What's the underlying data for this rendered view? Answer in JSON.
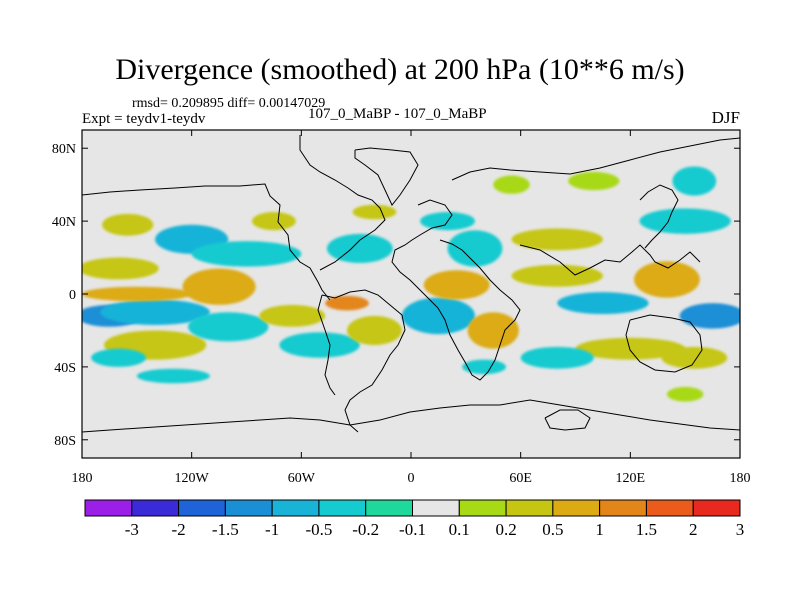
{
  "chart_data": {
    "type": "heatmap",
    "title": "Divergence (smoothed) at 200 hPa (10**6 m/s)",
    "stats_line": "rmsd= 0.209895 diff= 0.00147029",
    "experiment_label": "Expt = teydv1-teydv",
    "comparison_label": "107_0_MaBP - 107_0_MaBP",
    "season": "DJF",
    "x_axis": {
      "ticks": [
        -180,
        -120,
        -60,
        0,
        60,
        120,
        180
      ],
      "tick_labels": [
        "180",
        "120W",
        "60W",
        "0",
        "60E",
        "120E",
        "180"
      ],
      "xlim": [
        -180,
        180
      ]
    },
    "y_axis": {
      "ticks": [
        80,
        40,
        0,
        -40,
        -80
      ],
      "tick_labels": [
        "80N",
        "40N",
        "0",
        "40S",
        "80S"
      ],
      "ylim": [
        -90,
        90
      ]
    },
    "colorbar": {
      "boundaries": [
        "-3",
        "-2",
        "-1.5",
        "-1",
        "-0.5",
        "-0.2",
        "-0.1",
        "0.1",
        "0.2",
        "0.5",
        "1",
        "1.5",
        "2",
        "3"
      ],
      "colors": [
        "#9b1fe6",
        "#3a2ad8",
        "#1f63d9",
        "#1b8fd6",
        "#19b3d8",
        "#16cbd0",
        "#1ed89c",
        "#e6e6e6",
        "#a8d915",
        "#c6c612",
        "#dcab14",
        "#e3861a",
        "#ea5b1c",
        "#e8291f"
      ]
    },
    "anomaly_regions": [
      {
        "lon": -165,
        "lat": -12,
        "dlon": 18,
        "dlat": 6,
        "value": -1.0
      },
      {
        "lon": -140,
        "lat": -10,
        "dlon": 30,
        "dlat": 7,
        "value": -0.5
      },
      {
        "lon": -150,
        "lat": 0,
        "dlon": 30,
        "dlat": 4,
        "value": 0.8
      },
      {
        "lon": -160,
        "lat": 14,
        "dlon": 22,
        "dlat": 6,
        "value": 0.5
      },
      {
        "lon": -140,
        "lat": -28,
        "dlon": 28,
        "dlat": 8,
        "value": 0.4
      },
      {
        "lon": -105,
        "lat": 4,
        "dlon": 20,
        "dlat": 10,
        "value": 0.6
      },
      {
        "lon": -120,
        "lat": 30,
        "dlon": 20,
        "dlat": 8,
        "value": -0.5
      },
      {
        "lon": -155,
        "lat": 38,
        "dlon": 14,
        "dlat": 6,
        "value": 0.3
      },
      {
        "lon": -90,
        "lat": 22,
        "dlon": 30,
        "dlat": 7,
        "value": -0.4
      },
      {
        "lon": -100,
        "lat": -18,
        "dlon": 22,
        "dlat": 8,
        "value": -0.4
      },
      {
        "lon": -65,
        "lat": -12,
        "dlon": 18,
        "dlat": 6,
        "value": 0.5
      },
      {
        "lon": -50,
        "lat": -28,
        "dlon": 22,
        "dlat": 7,
        "value": -0.3
      },
      {
        "lon": -28,
        "lat": 25,
        "dlon": 18,
        "dlat": 8,
        "value": -0.4
      },
      {
        "lon": -35,
        "lat": -5,
        "dlon": 12,
        "dlat": 4,
        "value": 1.2
      },
      {
        "lon": -20,
        "lat": -20,
        "dlon": 15,
        "dlat": 8,
        "value": 0.4
      },
      {
        "lon": 15,
        "lat": -12,
        "dlon": 20,
        "dlat": 10,
        "value": -0.5
      },
      {
        "lon": 45,
        "lat": -20,
        "dlon": 14,
        "dlat": 10,
        "value": 0.6
      },
      {
        "lon": 35,
        "lat": 25,
        "dlon": 15,
        "dlat": 10,
        "value": -0.4
      },
      {
        "lon": 25,
        "lat": 5,
        "dlon": 18,
        "dlat": 8,
        "value": 0.6
      },
      {
        "lon": 80,
        "lat": 10,
        "dlon": 25,
        "dlat": 6,
        "value": 0.5
      },
      {
        "lon": 105,
        "lat": -5,
        "dlon": 25,
        "dlat": 6,
        "value": -0.8
      },
      {
        "lon": 140,
        "lat": 8,
        "dlon": 18,
        "dlat": 10,
        "value": 0.8
      },
      {
        "lon": 165,
        "lat": -12,
        "dlon": 18,
        "dlat": 7,
        "value": -1.0
      },
      {
        "lon": 80,
        "lat": 30,
        "dlon": 25,
        "dlat": 6,
        "value": 0.3
      },
      {
        "lon": 150,
        "lat": 40,
        "dlon": 25,
        "dlat": 7,
        "value": -0.3
      },
      {
        "lon": 100,
        "lat": 62,
        "dlon": 14,
        "dlat": 5,
        "value": 0.2
      },
      {
        "lon": 155,
        "lat": 62,
        "dlon": 12,
        "dlat": 8,
        "value": -0.2
      },
      {
        "lon": 120,
        "lat": -30,
        "dlon": 30,
        "dlat": 6,
        "value": 0.4
      },
      {
        "lon": 80,
        "lat": -35,
        "dlon": 20,
        "dlat": 6,
        "value": -0.3
      },
      {
        "lon": 155,
        "lat": -35,
        "dlon": 18,
        "dlat": 6,
        "value": 0.3
      },
      {
        "lon": -130,
        "lat": -45,
        "dlon": 20,
        "dlat": 4,
        "value": -0.3
      },
      {
        "lon": 40,
        "lat": -40,
        "dlon": 12,
        "dlat": 4,
        "value": -0.3
      },
      {
        "lon": 150,
        "lat": -55,
        "dlon": 10,
        "dlat": 4,
        "value": 0.2
      },
      {
        "lon": -20,
        "lat": 45,
        "dlon": 12,
        "dlat": 4,
        "value": 0.3
      },
      {
        "lon": 20,
        "lat": 40,
        "dlon": 15,
        "dlat": 5,
        "value": -0.2
      },
      {
        "lon": 55,
        "lat": 60,
        "dlon": 10,
        "dlat": 5,
        "value": 0.2
      },
      {
        "lon": -160,
        "lat": -35,
        "dlon": 15,
        "dlat": 5,
        "value": -0.3
      },
      {
        "lon": -75,
        "lat": 40,
        "dlon": 12,
        "dlat": 5,
        "value": 0.3
      }
    ]
  }
}
